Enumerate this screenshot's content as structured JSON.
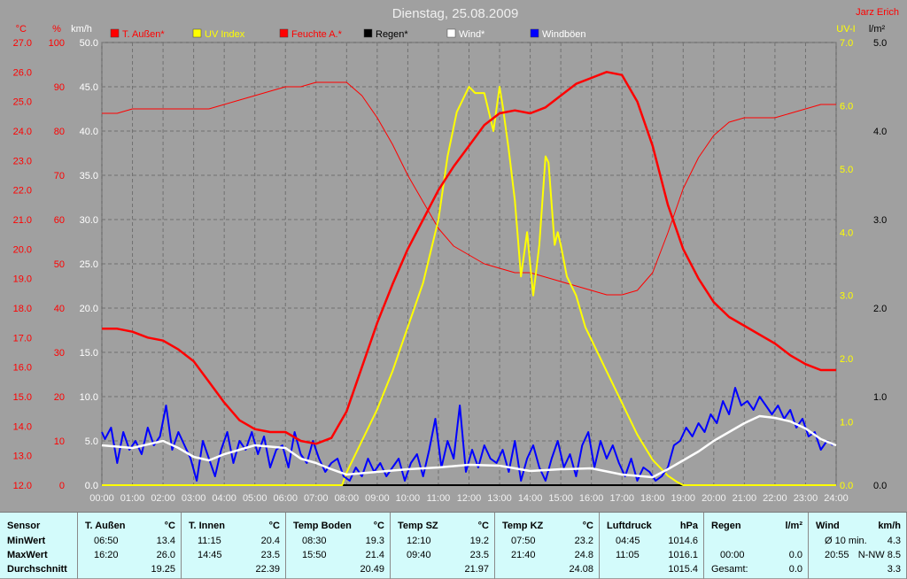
{
  "title": "Dienstag, 25.08.2009",
  "author": "Jarz Erich",
  "legend": [
    {
      "label": "T. Außen*",
      "color": "#ff0000"
    },
    {
      "label": "UV Index",
      "color": "#ffff00"
    },
    {
      "label": "Feuchte A.*",
      "color": "#ff0000"
    },
    {
      "label": "Regen*",
      "color": "#000000"
    },
    {
      "label": "Wind*",
      "color": "#ffffff"
    },
    {
      "label": "Windböen",
      "color": "#0000ff"
    }
  ],
  "colors": {
    "text_red": "#ff0000",
    "text_yellow": "#ffff00",
    "plot_bg": "#a0a0a0",
    "stats_bg": "#d3fbfb"
  },
  "chart_data": {
    "type": "line",
    "title": "Dienstag, 25.08.2009",
    "x_ticks": [
      "00:00",
      "01:00",
      "02:00",
      "03:00",
      "04:00",
      "05:00",
      "06:00",
      "07:00",
      "08:00",
      "09:00",
      "10:00",
      "11:00",
      "12:00",
      "13:00",
      "14:00",
      "15:00",
      "16:00",
      "17:00",
      "18:00",
      "19:00",
      "20:00",
      "21:00",
      "22:00",
      "23:00",
      "24:00"
    ],
    "axes": {
      "temp_c": {
        "unit": "°C",
        "min": 12,
        "max": 27,
        "ticks": [
          "12.0",
          "13.0",
          "14.0",
          "15.0",
          "16.0",
          "17.0",
          "18.0",
          "19.0",
          "20.0",
          "21.0",
          "22.0",
          "23.0",
          "24.0",
          "25.0",
          "26.0",
          "27.0"
        ]
      },
      "humidity_pct": {
        "unit": "%",
        "min": 0,
        "max": 100,
        "ticks": [
          "0",
          "10",
          "20",
          "30",
          "40",
          "50",
          "60",
          "70",
          "80",
          "90",
          "100"
        ]
      },
      "wind_kmh": {
        "unit": "km/h",
        "min": 0,
        "max": 50,
        "ticks": [
          "0.0",
          "5.0",
          "10.0",
          "15.0",
          "20.0",
          "25.0",
          "30.0",
          "35.0",
          "40.0",
          "45.0",
          "50.0"
        ]
      },
      "uv": {
        "unit": "UV-I",
        "min": 0,
        "max": 7,
        "ticks": [
          "0.0",
          "1.0",
          "2.0",
          "3.0",
          "4.0",
          "5.0",
          "6.0",
          "7.0"
        ]
      },
      "rain_lm2": {
        "unit": "l/m²",
        "min": 0,
        "max": 5,
        "ticks": [
          "0.0",
          "1.0",
          "2.0",
          "3.0",
          "4.0",
          "5.0"
        ]
      }
    },
    "grid": true,
    "series": [
      {
        "name": "T. Außen*",
        "axis": "temp_c",
        "color": "#ff0000",
        "width": 2.5,
        "x": [
          0,
          0.5,
          1,
          1.5,
          2,
          2.5,
          3,
          3.5,
          4,
          4.5,
          5,
          5.5,
          6,
          6.5,
          7,
          7.5,
          8,
          8.5,
          9,
          9.5,
          10,
          10.5,
          11,
          11.5,
          12,
          12.5,
          13,
          13.5,
          14,
          14.5,
          15,
          15.5,
          16,
          16.5,
          17,
          17.5,
          18,
          18.5,
          19,
          19.5,
          20,
          20.5,
          21,
          21.5,
          22,
          22.5,
          23,
          23.5,
          24
        ],
        "y": [
          17.3,
          17.3,
          17.2,
          17.0,
          16.9,
          16.6,
          16.2,
          15.5,
          14.8,
          14.2,
          13.9,
          13.8,
          13.8,
          13.5,
          13.4,
          13.6,
          14.5,
          16.0,
          17.5,
          18.8,
          20.0,
          21.0,
          22.0,
          22.8,
          23.5,
          24.2,
          24.6,
          24.7,
          24.6,
          24.8,
          25.2,
          25.6,
          25.8,
          26.0,
          25.9,
          25.0,
          23.5,
          21.5,
          20.0,
          19.0,
          18.2,
          17.7,
          17.4,
          17.1,
          16.8,
          16.4,
          16.1,
          15.9,
          15.9
        ]
      },
      {
        "name": "Feuchte A.*",
        "axis": "humidity_pct",
        "color": "#ff0000",
        "width": 1,
        "x": [
          0,
          0.5,
          1,
          1.5,
          2,
          2.5,
          3,
          3.5,
          4,
          4.5,
          5,
          5.5,
          6,
          6.5,
          7,
          7.5,
          8,
          8.5,
          9,
          9.5,
          10,
          10.5,
          11,
          11.5,
          12,
          12.5,
          13,
          13.5,
          14,
          14.5,
          15,
          15.5,
          16,
          16.5,
          17,
          17.5,
          18,
          18.5,
          19,
          19.5,
          20,
          20.5,
          21,
          21.5,
          22,
          22.5,
          23,
          23.5,
          24
        ],
        "y": [
          84,
          84,
          85,
          85,
          85,
          85,
          85,
          85,
          86,
          87,
          88,
          89,
          90,
          90,
          91,
          91,
          91,
          88,
          83,
          77,
          70,
          64,
          58,
          54,
          52,
          50,
          49,
          48,
          48,
          47,
          46,
          45,
          44,
          43,
          43,
          44,
          48,
          57,
          67,
          74,
          79,
          82,
          83,
          83,
          83,
          84,
          85,
          86,
          86
        ]
      },
      {
        "name": "UV Index",
        "axis": "uv",
        "color": "#ffff00",
        "width": 2,
        "x": [
          0,
          7.85,
          8,
          8.5,
          9,
          9.5,
          10,
          10.5,
          11,
          11.3,
          11.6,
          12,
          12.2,
          12.5,
          12.8,
          13.0,
          13.1,
          13.3,
          13.5,
          13.7,
          13.9,
          14.1,
          14.3,
          14.5,
          14.6,
          14.8,
          14.9,
          15.0,
          15.2,
          15.5,
          15.8,
          16.0,
          16.5,
          17.0,
          17.5,
          18.0,
          18.5,
          18.8,
          19.0,
          24
        ],
        "y": [
          0,
          0,
          0.2,
          0.7,
          1.2,
          1.8,
          2.5,
          3.2,
          4.2,
          5.2,
          5.9,
          6.3,
          6.2,
          6.2,
          5.6,
          6.3,
          6.0,
          5.3,
          4.5,
          3.3,
          4.0,
          3.0,
          3.8,
          5.2,
          5.1,
          3.8,
          4.0,
          3.8,
          3.3,
          3.0,
          2.5,
          2.3,
          1.8,
          1.3,
          0.8,
          0.4,
          0.15,
          0.05,
          0,
          0
        ]
      },
      {
        "name": "Wind*",
        "axis": "wind_kmh",
        "color": "#ffffff",
        "width": 2.5,
        "x": [
          0,
          1,
          2,
          2.5,
          3,
          3.5,
          4,
          5,
          6,
          6.5,
          7,
          7.5,
          8,
          9,
          10,
          11,
          12,
          13,
          14,
          15,
          16,
          17,
          18,
          18.5,
          19,
          19.5,
          20,
          20.5,
          21,
          21.5,
          22,
          22.5,
          23,
          23.5,
          24
        ],
        "y": [
          4.5,
          4.2,
          5.0,
          4.2,
          3.2,
          2.8,
          3.5,
          4.5,
          4.2,
          3.0,
          2.5,
          1.8,
          1.2,
          1.5,
          1.8,
          2.0,
          2.3,
          2.2,
          1.6,
          1.8,
          1.9,
          1.2,
          0.9,
          1.8,
          2.8,
          3.8,
          5.0,
          6.0,
          7.0,
          7.8,
          7.6,
          7.2,
          6.4,
          5.2,
          4.5
        ]
      },
      {
        "name": "Windböen",
        "axis": "wind_kmh",
        "color": "#0000ff",
        "width": 2,
        "x": [
          0,
          0.1,
          0.3,
          0.5,
          0.7,
          0.9,
          1.1,
          1.3,
          1.5,
          1.7,
          1.9,
          2.1,
          2.3,
          2.5,
          2.7,
          2.9,
          3.1,
          3.3,
          3.5,
          3.7,
          3.9,
          4.1,
          4.3,
          4.5,
          4.7,
          4.9,
          5.1,
          5.3,
          5.5,
          5.7,
          5.9,
          6.1,
          6.3,
          6.5,
          6.7,
          6.9,
          7.1,
          7.3,
          7.5,
          7.7,
          7.9,
          8.1,
          8.3,
          8.5,
          8.7,
          8.9,
          9.1,
          9.3,
          9.5,
          9.7,
          9.9,
          10.1,
          10.3,
          10.5,
          10.7,
          10.9,
          11.1,
          11.3,
          11.5,
          11.7,
          11.9,
          12.1,
          12.3,
          12.5,
          12.7,
          12.9,
          13.1,
          13.3,
          13.5,
          13.7,
          13.9,
          14.1,
          14.3,
          14.5,
          14.7,
          14.9,
          15.1,
          15.3,
          15.5,
          15.7,
          15.9,
          16.1,
          16.3,
          16.5,
          16.7,
          16.9,
          17.1,
          17.3,
          17.5,
          17.7,
          17.9,
          18.1,
          18.3,
          18.5,
          18.7,
          18.9,
          19.1,
          19.3,
          19.5,
          19.7,
          19.9,
          20.1,
          20.3,
          20.5,
          20.7,
          20.9,
          21.1,
          21.3,
          21.5,
          21.7,
          21.9,
          22.1,
          22.3,
          22.5,
          22.7,
          22.9,
          23.1,
          23.3,
          23.5,
          23.7,
          23.9
        ],
        "y": [
          6.0,
          5.2,
          6.5,
          2.5,
          6.0,
          4.0,
          5.0,
          3.5,
          6.5,
          4.5,
          5.5,
          9.0,
          4.0,
          6.0,
          4.5,
          3.0,
          0.5,
          5.0,
          3.0,
          1.0,
          4.0,
          6.0,
          2.5,
          5.0,
          4.0,
          6.0,
          3.5,
          5.5,
          2.0,
          4.0,
          4.5,
          2.0,
          6.0,
          3.5,
          2.5,
          5.0,
          3.0,
          1.5,
          2.5,
          3.0,
          1.0,
          0.5,
          2.0,
          1.0,
          3.0,
          1.5,
          2.5,
          1.0,
          2.0,
          3.0,
          0.5,
          2.5,
          3.5,
          1.0,
          4.0,
          7.5,
          2.0,
          5.0,
          3.0,
          9.0,
          1.5,
          4.0,
          2.0,
          4.5,
          3.0,
          2.5,
          4.0,
          1.5,
          5.0,
          0.5,
          3.0,
          4.5,
          2.0,
          0.5,
          3.0,
          5.0,
          2.0,
          3.5,
          1.0,
          4.5,
          6.0,
          2.0,
          5.0,
          3.0,
          4.5,
          2.5,
          1.0,
          3.0,
          0.5,
          2.0,
          1.5,
          0.5,
          1.0,
          2.0,
          4.5,
          5.0,
          6.5,
          5.5,
          7.0,
          6.0,
          8.0,
          7.0,
          9.5,
          8.0,
          11.0,
          9.0,
          9.5,
          8.5,
          10.0,
          9.0,
          8.0,
          9.0,
          7.5,
          8.5,
          6.5,
          7.5,
          5.5,
          6.0,
          4.0,
          5.0,
          4.5
        ]
      },
      {
        "name": "Regen*",
        "axis": "rain_lm2",
        "color": "#000000",
        "width": 2,
        "x": [
          0,
          24
        ],
        "y": [
          0,
          0
        ]
      }
    ]
  },
  "stats": {
    "row_labels": [
      "Sensor",
      "MinWert",
      "MaxWert",
      "Durchschnitt"
    ],
    "columns": [
      {
        "name": "T. Außen",
        "unit": "°C",
        "min_time": "06:50",
        "min": "13.4",
        "max_time": "16:20",
        "max": "26.0",
        "avg": "19.25",
        "avg_label": ""
      },
      {
        "name": "T. Innen",
        "unit": "°C",
        "min_time": "11:15",
        "min": "20.4",
        "max_time": "14:45",
        "max": "23.5",
        "avg": "22.39",
        "avg_label": ""
      },
      {
        "name": "Temp Boden",
        "unit": "°C",
        "min_time": "08:30",
        "min": "19.3",
        "max_time": "15:50",
        "max": "21.4",
        "avg": "20.49",
        "avg_label": ""
      },
      {
        "name": "Temp SZ",
        "unit": "°C",
        "min_time": "12:10",
        "min": "19.2",
        "max_time": "09:40",
        "max": "23.5",
        "avg": "21.97",
        "avg_label": ""
      },
      {
        "name": "Temp KZ",
        "unit": "°C",
        "min_time": "07:50",
        "min": "23.2",
        "max_time": "21:40",
        "max": "24.8",
        "avg": "24.08",
        "avg_label": ""
      },
      {
        "name": "Luftdruck",
        "unit": "hPa",
        "min_time": "04:45",
        "min": "1014.6",
        "max_time": "11:05",
        "max": "1016.1",
        "avg": "1015.4",
        "avg_label": ""
      },
      {
        "name": "Regen",
        "unit": "l/m²",
        "min_time": "",
        "min": "",
        "max_time": "00:00",
        "max": "0.0",
        "avg": "0.0",
        "avg_label": "Gesamt:"
      },
      {
        "name": "Wind",
        "unit": "km/h",
        "min_time": "Ø 10 min.",
        "min": "4.3",
        "max_time": "20:55",
        "max": "N-NW 8.5",
        "avg": "3.3",
        "avg_label": ""
      }
    ]
  }
}
